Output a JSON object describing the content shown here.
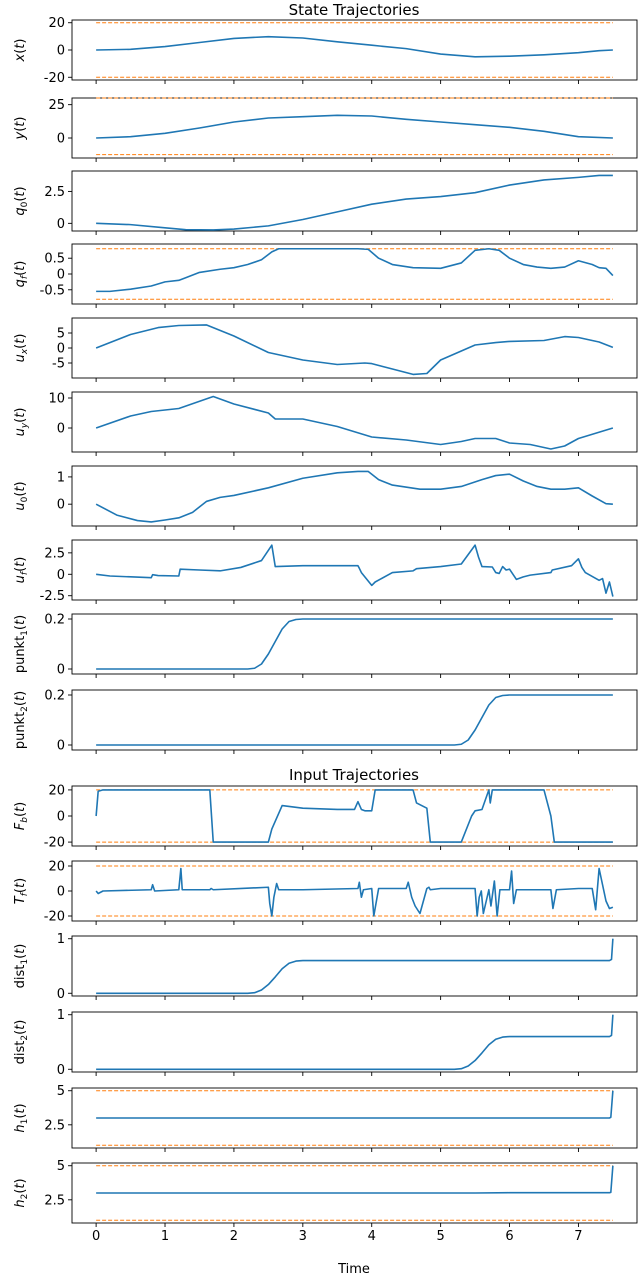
{
  "titles": {
    "state": "State Trajectories",
    "input": "Input Trajectories"
  },
  "xlabel": "Time",
  "colors": {
    "series": "#1f77b4",
    "bounds": "#ff7f0e"
  },
  "x_ticks": [
    "0",
    "1",
    "2",
    "3",
    "4",
    "5",
    "6",
    "7"
  ],
  "chart_data": [
    {
      "id": "x",
      "type": "line",
      "ylabel": "x(t)",
      "ylim": [
        -22,
        22
      ],
      "yticks": [
        -20,
        0,
        20
      ],
      "bounds": [
        -20,
        20
      ],
      "x": [
        0,
        0.5,
        1.0,
        1.5,
        2.0,
        2.5,
        3.0,
        3.5,
        4.0,
        4.5,
        5.0,
        5.5,
        6.0,
        6.5,
        7.0,
        7.3,
        7.5
      ],
      "y": [
        0,
        0.5,
        2.5,
        5.5,
        8.5,
        9.8,
        8.8,
        6,
        3.5,
        1,
        -3,
        -5,
        -4.5,
        -3.5,
        -2,
        -0.5,
        0
      ]
    },
    {
      "id": "y",
      "type": "line",
      "ylabel": "y(t)",
      "ylim": [
        -15,
        30
      ],
      "yticks": [
        0,
        25
      ],
      "bounds": [
        -12.5,
        30
      ],
      "x": [
        0,
        0.5,
        1.0,
        1.5,
        2.0,
        2.5,
        3.0,
        3.5,
        4.0,
        4.5,
        5.0,
        5.5,
        6.0,
        6.5,
        7.0,
        7.5
      ],
      "y": [
        0,
        1,
        3.5,
        7.5,
        12,
        15,
        16,
        17,
        16.5,
        14,
        12,
        10,
        8,
        5,
        1,
        0
      ]
    },
    {
      "id": "q0",
      "type": "line",
      "ylabel": "q0(t)",
      "ylim": [
        -0.6,
        4.1
      ],
      "yticks": [
        0,
        2.5
      ],
      "x": [
        0,
        0.5,
        1.0,
        1.3,
        1.7,
        2.0,
        2.5,
        3.0,
        3.5,
        4.0,
        4.5,
        5.0,
        5.5,
        6.0,
        6.5,
        7.0,
        7.3,
        7.5
      ],
      "y": [
        0,
        -0.1,
        -0.35,
        -0.5,
        -0.52,
        -0.45,
        -0.2,
        0.3,
        0.9,
        1.5,
        1.9,
        2.1,
        2.4,
        3,
        3.4,
        3.6,
        3.75,
        3.75
      ]
    },
    {
      "id": "qf",
      "type": "line",
      "ylabel": "qf(t)",
      "ylim": [
        -0.95,
        0.95
      ],
      "yticks": [
        -0.5,
        0,
        0.5
      ],
      "bounds": [
        -0.8,
        0.8
      ],
      "x": [
        0,
        0.2,
        0.5,
        0.8,
        1.0,
        1.2,
        1.3,
        1.5,
        1.8,
        2.0,
        2.2,
        2.4,
        2.55,
        2.65,
        3.0,
        3.5,
        3.8,
        3.95,
        4.1,
        4.3,
        4.6,
        5.0,
        5.3,
        5.5,
        5.7,
        5.85,
        6.0,
        6.2,
        6.4,
        6.6,
        6.8,
        7.0,
        7.2,
        7.3,
        7.4,
        7.5
      ],
      "y": [
        -0.55,
        -0.55,
        -0.48,
        -0.38,
        -0.25,
        -0.2,
        -0.12,
        0.05,
        0.15,
        0.2,
        0.3,
        0.45,
        0.7,
        0.8,
        0.8,
        0.8,
        0.8,
        0.78,
        0.5,
        0.3,
        0.2,
        0.18,
        0.35,
        0.75,
        0.8,
        0.75,
        0.5,
        0.3,
        0.22,
        0.18,
        0.22,
        0.42,
        0.3,
        0.2,
        0.18,
        -0.05
      ]
    },
    {
      "id": "ux",
      "type": "line",
      "ylabel": "ux(t)",
      "ylim": [
        -10,
        10
      ],
      "yticks": [
        -5,
        0,
        5
      ],
      "x": [
        0,
        0.5,
        0.9,
        1.2,
        1.6,
        2.0,
        2.5,
        3.0,
        3.5,
        3.9,
        4.0,
        4.3,
        4.6,
        4.8,
        5.0,
        5.3,
        5.5,
        5.8,
        6.0,
        6.5,
        6.8,
        7.0,
        7.3,
        7.5
      ],
      "y": [
        0,
        4.5,
        6.8,
        7.5,
        7.7,
        4,
        -1.5,
        -4,
        -5.5,
        -5,
        -5.2,
        -7,
        -8.8,
        -8.5,
        -4,
        -1,
        1,
        1.8,
        2.2,
        2.5,
        3.8,
        3.5,
        2,
        0.2
      ]
    },
    {
      "id": "uy",
      "type": "line",
      "ylabel": "uy(t)",
      "ylim": [
        -8,
        12
      ],
      "yticks": [
        0,
        10
      ],
      "x": [
        0,
        0.5,
        0.8,
        1.2,
        1.7,
        2.0,
        2.5,
        2.6,
        3.0,
        3.5,
        4.0,
        4.5,
        5.0,
        5.3,
        5.5,
        5.8,
        6.0,
        6.3,
        6.5,
        6.6,
        6.8,
        7.0,
        7.5
      ],
      "y": [
        0,
        4,
        5.5,
        6.5,
        10.5,
        8,
        5,
        3,
        3,
        0.5,
        -3,
        -4,
        -5.5,
        -4.5,
        -3.5,
        -3.5,
        -5,
        -5.5,
        -6.5,
        -7,
        -6,
        -3.5,
        0
      ]
    },
    {
      "id": "u0",
      "type": "line",
      "ylabel": "u0(t)",
      "ylim": [
        -0.8,
        1.4
      ],
      "yticks": [
        0,
        1
      ],
      "x": [
        0,
        0.3,
        0.6,
        0.8,
        1.0,
        1.2,
        1.4,
        1.6,
        1.8,
        2.0,
        2.5,
        3.0,
        3.5,
        3.8,
        3.95,
        4.1,
        4.3,
        4.7,
        5.0,
        5.3,
        5.6,
        5.8,
        6.0,
        6.2,
        6.4,
        6.6,
        6.8,
        7.0,
        7.2,
        7.4,
        7.5
      ],
      "y": [
        0,
        -0.4,
        -0.6,
        -0.65,
        -0.58,
        -0.5,
        -0.3,
        0.1,
        0.25,
        0.32,
        0.6,
        0.95,
        1.15,
        1.2,
        1.2,
        0.9,
        0.7,
        0.55,
        0.55,
        0.65,
        0.9,
        1.05,
        1.1,
        0.85,
        0.65,
        0.55,
        0.55,
        0.6,
        0.3,
        0.02,
        0
      ]
    },
    {
      "id": "uf",
      "type": "line",
      "ylabel": "uf(t)",
      "ylim": [
        -3,
        4
      ],
      "yticks": [
        -2.5,
        0,
        2.5
      ],
      "x": [
        0,
        0.2,
        0.5,
        0.8,
        0.82,
        0.9,
        1.2,
        1.22,
        1.5,
        1.8,
        2.1,
        2.4,
        2.5,
        2.55,
        2.6,
        3.0,
        3.5,
        3.8,
        3.82,
        3.85,
        4.0,
        4.05,
        4.3,
        4.6,
        4.65,
        5.0,
        5.3,
        5.5,
        5.55,
        5.6,
        5.75,
        5.8,
        5.85,
        5.9,
        5.95,
        6.0,
        6.1,
        6.2,
        6.3,
        6.6,
        6.62,
        6.9,
        7.0,
        7.05,
        7.1,
        7.3,
        7.35,
        7.4,
        7.45,
        7.5
      ],
      "y": [
        0,
        -0.2,
        -0.3,
        -0.4,
        -0.05,
        -0.15,
        -0.2,
        0.6,
        0.5,
        0.4,
        0.8,
        1.6,
        2.8,
        3.4,
        0.9,
        1,
        1,
        1,
        0.7,
        0.2,
        -1.3,
        -0.9,
        0.2,
        0.4,
        0.65,
        0.9,
        1.2,
        3.4,
        2,
        0.9,
        0.85,
        0.2,
        0.1,
        0.9,
        0.5,
        0.6,
        -0.6,
        -0.3,
        -0.1,
        0.2,
        0.5,
        1,
        1.8,
        0.8,
        0.2,
        -0.7,
        -0.5,
        -2.2,
        -0.9,
        -2.6
      ]
    },
    {
      "id": "punkt1",
      "type": "line",
      "ylabel": "punkt1(t)",
      "ylim": [
        -0.02,
        0.22
      ],
      "yticks": [
        0,
        0.2
      ],
      "x": [
        0,
        2.2,
        2.3,
        2.4,
        2.5,
        2.6,
        2.7,
        2.8,
        2.9,
        3.0,
        7.5
      ],
      "y": [
        0,
        0,
        0.003,
        0.02,
        0.06,
        0.11,
        0.16,
        0.19,
        0.198,
        0.2,
        0.2
      ]
    },
    {
      "id": "punkt2",
      "type": "line",
      "ylabel": "punkt2(t)",
      "ylim": [
        -0.02,
        0.22
      ],
      "yticks": [
        0,
        0.2
      ],
      "x": [
        0,
        5.2,
        5.3,
        5.4,
        5.5,
        5.6,
        5.7,
        5.8,
        5.9,
        6.0,
        7.5
      ],
      "y": [
        0,
        0,
        0.003,
        0.02,
        0.06,
        0.11,
        0.16,
        0.19,
        0.198,
        0.2,
        0.2
      ]
    },
    {
      "id": "Fb",
      "type": "line",
      "ylabel": "Fb(t)",
      "ylim": [
        -23,
        23
      ],
      "yticks": [
        -20,
        0,
        20
      ],
      "bounds": [
        -20,
        20
      ],
      "x": [
        0,
        0.03,
        0.1,
        1.65,
        1.7,
        2.5,
        2.55,
        2.7,
        3.0,
        3.5,
        3.75,
        3.8,
        3.85,
        3.9,
        4.0,
        4.05,
        4.6,
        4.65,
        4.8,
        4.85,
        5.0,
        5.2,
        5.3,
        5.45,
        5.5,
        5.6,
        5.7,
        5.72,
        5.75,
        5.8,
        5.85,
        6.5,
        6.6,
        6.65,
        7.5
      ],
      "y": [
        0,
        19,
        20,
        20,
        -20,
        -20,
        -10,
        8,
        6,
        5,
        5,
        11,
        5,
        4,
        4,
        20,
        20,
        10,
        6,
        -20,
        -20,
        -20,
        -20,
        0,
        4,
        5,
        20,
        10,
        20,
        20,
        20,
        20,
        0,
        -20,
        -20
      ]
    },
    {
      "id": "Tf",
      "type": "line",
      "ylabel": "Tf(t)",
      "ylim": [
        -24,
        24
      ],
      "yticks": [
        -20,
        0,
        20
      ],
      "bounds": [
        -20,
        20
      ],
      "x": [
        0,
        0.03,
        0.1,
        0.8,
        0.82,
        0.85,
        1.2,
        1.23,
        1.25,
        1.65,
        1.67,
        1.7,
        2.5,
        2.52,
        2.55,
        2.58,
        2.62,
        2.65,
        3.0,
        3.8,
        3.82,
        3.85,
        3.88,
        4.0,
        4.03,
        4.1,
        4.5,
        4.53,
        4.58,
        4.63,
        4.7,
        4.8,
        4.83,
        4.85,
        5.0,
        5.5,
        5.53,
        5.56,
        5.59,
        5.62,
        5.7,
        5.73,
        5.78,
        5.82,
        5.86,
        6.0,
        6.03,
        6.06,
        6.1,
        6.6,
        6.63,
        6.68,
        7.0,
        7.2,
        7.25,
        7.3,
        7.35,
        7.4,
        7.45,
        7.5
      ],
      "y": [
        0,
        -2,
        0,
        1,
        5,
        0,
        1,
        18,
        1,
        1,
        2,
        1,
        3,
        -10,
        -20,
        -5,
        6,
        1,
        1,
        2,
        7,
        -5,
        1,
        2,
        -20,
        2,
        2,
        7,
        -5,
        -12,
        -18,
        2,
        3,
        1,
        2,
        2,
        -20,
        -5,
        0,
        -18,
        1,
        -12,
        8,
        -20,
        1,
        1,
        16,
        -10,
        1,
        1,
        -14,
        1,
        2,
        2,
        -15,
        18,
        5,
        -8,
        -14,
        -13
      ]
    },
    {
      "id": "dist1",
      "type": "line",
      "ylabel": "dist1(t)",
      "ylim": [
        -0.05,
        1.05
      ],
      "yticks": [
        0,
        1
      ],
      "x": [
        0,
        2.2,
        2.3,
        2.4,
        2.5,
        2.6,
        2.7,
        2.8,
        2.9,
        3.0,
        7.45,
        7.48,
        7.5
      ],
      "y": [
        0,
        0,
        0.01,
        0.06,
        0.16,
        0.3,
        0.45,
        0.55,
        0.59,
        0.6,
        0.6,
        0.62,
        1
      ]
    },
    {
      "id": "dist2",
      "type": "line",
      "ylabel": "dist2(t)",
      "ylim": [
        -0.05,
        1.05
      ],
      "yticks": [
        0,
        1
      ],
      "x": [
        0,
        5.2,
        5.3,
        5.4,
        5.5,
        5.6,
        5.7,
        5.8,
        5.9,
        6.0,
        7.45,
        7.48,
        7.5
      ],
      "y": [
        0,
        0,
        0.01,
        0.06,
        0.16,
        0.3,
        0.45,
        0.55,
        0.59,
        0.6,
        0.6,
        0.62,
        1
      ]
    },
    {
      "id": "h1",
      "type": "line",
      "ylabel": "h1(t)",
      "ylim": [
        0.8,
        5.2
      ],
      "yticks": [
        2.5,
        5
      ],
      "bounds": [
        1,
        5
      ],
      "x": [
        0,
        7.45,
        7.47,
        7.5
      ],
      "y": [
        3,
        3,
        3.05,
        5
      ]
    },
    {
      "id": "h2",
      "type": "line",
      "ylabel": "h2(t)",
      "ylim": [
        0.8,
        5.2
      ],
      "yticks": [
        2.5,
        5
      ],
      "bounds": [
        1,
        5
      ],
      "x": [
        0,
        5.5,
        6.0,
        7.45,
        7.47,
        7.5
      ],
      "y": [
        3,
        3,
        3.02,
        3.02,
        3.05,
        5
      ]
    }
  ]
}
